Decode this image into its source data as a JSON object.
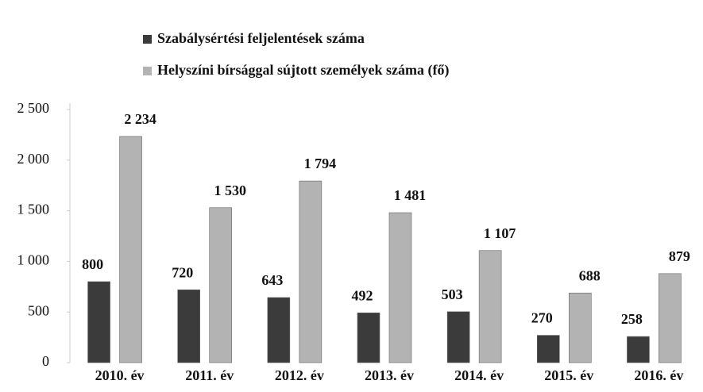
{
  "chart_data": {
    "type": "bar",
    "categories": [
      "2010. év",
      "2011. év",
      "2012. év",
      "2013. év",
      "2014. év",
      "2015. év",
      "2016. év"
    ],
    "series": [
      {
        "name": "Szabálysértési feljelentések száma",
        "color": "#3b3b3b",
        "values": [
          800,
          720,
          643,
          492,
          503,
          270,
          258
        ]
      },
      {
        "name": "Helyszíni bírsággal sújtott személyek száma (fő)",
        "color": "#b3b3b3",
        "values": [
          2234,
          1530,
          1794,
          1481,
          1107,
          688,
          879
        ],
        "value_labels": [
          "2 234",
          "1 530",
          "1 794",
          "1 481",
          "1 107",
          "688",
          "879"
        ]
      }
    ],
    "ylim": [
      0,
      2500
    ],
    "yticks": [
      0,
      500,
      {
        "value": 1000,
        "label": "1 000"
      },
      {
        "value": 1500,
        "label": "1 500"
      },
      {
        "value": 2000,
        "label": "2 000"
      },
      {
        "value": 2500,
        "label": "2 500"
      }
    ],
    "grid": false
  }
}
